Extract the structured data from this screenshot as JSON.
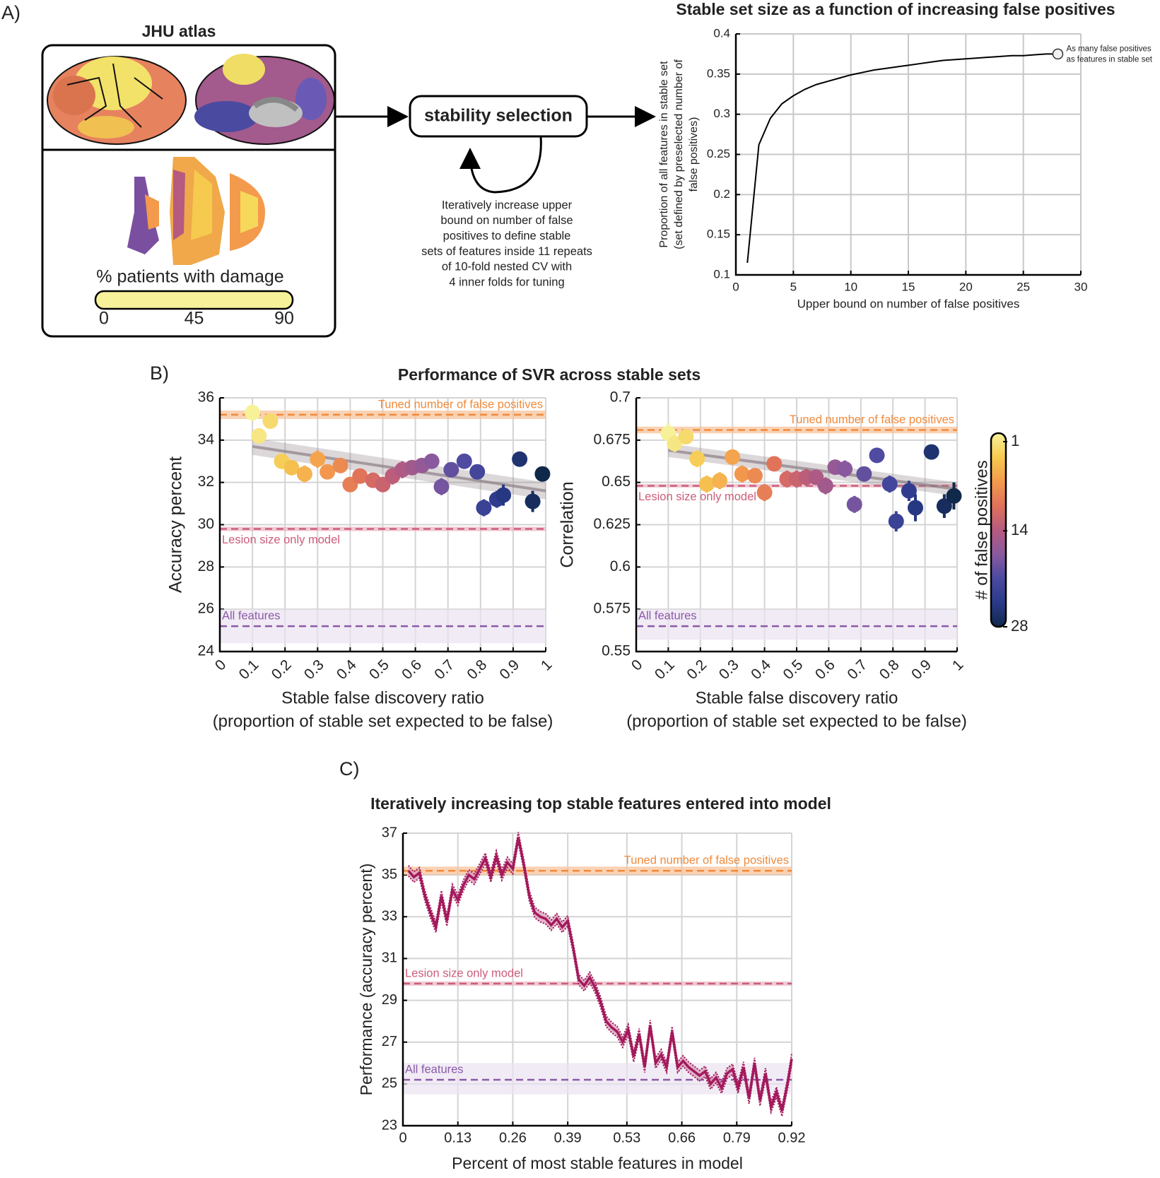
{
  "panel_labels": [
    "A)",
    "B)",
    "C)"
  ],
  "panel_a": {
    "atlas_title": "JHU atlas",
    "colorbar_label": "% patients with damage",
    "colorbar_lim": [
      0,
      90
    ],
    "colorbar_ticks": [
      0,
      45,
      90
    ],
    "box_label": "stability selection",
    "caption": [
      "Iteratively increase upper",
      "bound on number of false",
      "positives to define stable",
      "sets of features inside 11 repeats",
      "of 10-fold nested CV with",
      "4 inner folds for tuning"
    ]
  },
  "panel_b": {
    "title": "Performance of SVR across stable sets",
    "colorbar": {
      "label": "# of false positives",
      "lim": [
        1,
        28
      ],
      "ticks": [
        1,
        14,
        28
      ],
      "colors": [
        "#f7f29a",
        "#f6c94f",
        "#f39a4c",
        "#e0715a",
        "#b65a80",
        "#8a5a9e",
        "#4a4aa0",
        "#2a3a8a",
        "#10284a"
      ]
    }
  },
  "chart_data": [
    {
      "type": "line",
      "title": "Stable set size as a function of increasing false positives",
      "xlabel": "Upper bound on number of false positives",
      "ylabel": [
        "Proportion of all features in stable set",
        "(set defined by preselected number of",
        "false positives)"
      ],
      "x": [
        1,
        2,
        3,
        4,
        5,
        6,
        7,
        8,
        9,
        10,
        11,
        12,
        13,
        14,
        15,
        16,
        17,
        18,
        19,
        20,
        21,
        22,
        23,
        24,
        25,
        26,
        27,
        28
      ],
      "values": [
        0.115,
        0.262,
        0.295,
        0.313,
        0.323,
        0.331,
        0.337,
        0.341,
        0.345,
        0.349,
        0.352,
        0.355,
        0.357,
        0.359,
        0.361,
        0.363,
        0.365,
        0.367,
        0.368,
        0.369,
        0.37,
        0.371,
        0.372,
        0.373,
        0.373,
        0.374,
        0.375,
        0.375
      ],
      "color": "#000000",
      "xlim": [
        0,
        30
      ],
      "xticks": [
        0,
        5,
        10,
        15,
        20,
        25,
        30
      ],
      "ylim": [
        0.1,
        0.4
      ],
      "yticks": [
        0.1,
        0.15,
        0.2,
        0.25,
        0.3,
        0.35,
        0.4
      ],
      "grid": true,
      "annotation": {
        "lines": [
          "As many false positives",
          "as features in stable set"
        ],
        "x": 28,
        "y": 0.375
      }
    },
    {
      "type": "scatter",
      "ylabel": [
        "Accuracy percent"
      ],
      "xlabel": [
        "Stable false discovery ratio",
        "(proportion of stable set expected to be false)"
      ],
      "x": [
        0.1,
        0.12,
        0.155,
        0.19,
        0.22,
        0.26,
        0.3,
        0.33,
        0.37,
        0.4,
        0.43,
        0.47,
        0.5,
        0.53,
        0.56,
        0.59,
        0.62,
        0.65,
        0.68,
        0.71,
        0.75,
        0.79,
        0.81,
        0.85,
        0.87,
        0.92,
        0.96,
        0.99
      ],
      "values": [
        35.3,
        34.2,
        34.9,
        33.0,
        32.7,
        32.4,
        33.1,
        32.5,
        32.8,
        31.9,
        32.3,
        32.1,
        31.9,
        32.3,
        32.6,
        32.7,
        32.8,
        33.0,
        31.8,
        32.6,
        33.0,
        32.5,
        30.8,
        31.2,
        31.4,
        33.1,
        31.1,
        32.4
      ],
      "errors": [
        0.4,
        0.3,
        0.3,
        0.3,
        0.3,
        0.4,
        0.4,
        0.3,
        0.3,
        0.3,
        0.3,
        0.3,
        0.3,
        0.4,
        0.4,
        0.3,
        0.3,
        0.3,
        0.4,
        0.3,
        0.3,
        0.3,
        0.4,
        0.4,
        0.5,
        0.3,
        0.5,
        0.3
      ],
      "color_values": [
        1,
        2,
        3,
        4,
        5,
        6,
        7,
        8,
        9,
        10,
        11,
        12,
        13,
        14,
        15,
        16,
        17,
        18,
        19,
        20,
        21,
        22,
        23,
        24,
        25,
        26,
        27,
        28
      ],
      "xlim": [
        0,
        1
      ],
      "xticks": [
        0,
        0.1,
        0.2,
        0.3,
        0.4,
        0.5,
        0.6,
        0.7,
        0.8,
        0.9,
        1
      ],
      "ylim": [
        24,
        36
      ],
      "yticks": [
        24,
        26,
        28,
        30,
        32,
        34,
        36
      ],
      "grid": true,
      "trend": {
        "x": [
          0.1,
          1
        ],
        "values": [
          33.7,
          31.6
        ],
        "band": 0.4,
        "color": "#8c7f86"
      },
      "reference_lines": [
        {
          "name": "Tuned number of false positives",
          "value": 35.2,
          "band": [
            35.0,
            35.4
          ],
          "color": "#f08a3c",
          "band_color": "#f6bf94"
        },
        {
          "name": "Lesion size only model",
          "value": 29.8,
          "band": [
            29.7,
            29.9
          ],
          "color": "#cc5d7a",
          "band_color": "#e8b0bf"
        },
        {
          "name": "All features",
          "value": 25.2,
          "band": [
            24.4,
            26.0
          ],
          "color": "#8b5aa8",
          "band_color": "#ebe3f1"
        }
      ]
    },
    {
      "type": "scatter",
      "ylabel": [
        "Correlation"
      ],
      "xlabel": [
        "Stable false discovery ratio",
        "(proportion of stable set expected to be false)"
      ],
      "x": [
        0.1,
        0.12,
        0.155,
        0.19,
        0.22,
        0.26,
        0.3,
        0.33,
        0.37,
        0.4,
        0.43,
        0.47,
        0.5,
        0.53,
        0.56,
        0.59,
        0.62,
        0.65,
        0.68,
        0.71,
        0.75,
        0.79,
        0.81,
        0.85,
        0.87,
        0.92,
        0.96,
        0.99
      ],
      "values": [
        0.679,
        0.673,
        0.677,
        0.664,
        0.649,
        0.651,
        0.665,
        0.655,
        0.654,
        0.644,
        0.661,
        0.652,
        0.652,
        0.653,
        0.653,
        0.648,
        0.659,
        0.658,
        0.637,
        0.655,
        0.666,
        0.649,
        0.627,
        0.645,
        0.635,
        0.668,
        0.636,
        0.642
      ],
      "errors": [
        0.006,
        0.005,
        0.004,
        0.005,
        0.005,
        0.005,
        0.004,
        0.005,
        0.004,
        0.005,
        0.004,
        0.005,
        0.005,
        0.005,
        0.004,
        0.005,
        0.004,
        0.005,
        0.005,
        0.004,
        0.004,
        0.005,
        0.006,
        0.006,
        0.008,
        0.004,
        0.007,
        0.008
      ],
      "color_values": [
        1,
        2,
        3,
        4,
        5,
        6,
        7,
        8,
        9,
        10,
        11,
        12,
        13,
        14,
        15,
        16,
        17,
        18,
        19,
        20,
        21,
        22,
        23,
        24,
        25,
        26,
        27,
        28
      ],
      "xlim": [
        0,
        1
      ],
      "xticks": [
        0,
        0.1,
        0.2,
        0.3,
        0.4,
        0.5,
        0.6,
        0.7,
        0.8,
        0.9,
        1
      ],
      "ylim": [
        0.55,
        0.7
      ],
      "yticks": [
        0.55,
        0.575,
        0.6,
        0.625,
        0.65,
        0.675,
        0.7
      ],
      "grid": true,
      "trend": {
        "x": [
          0.1,
          1
        ],
        "values": [
          0.669,
          0.646
        ],
        "band": 0.004,
        "color": "#8c7f86"
      },
      "reference_lines": [
        {
          "name": "Tuned number of false positives",
          "value": 0.681,
          "band": [
            0.679,
            0.683
          ],
          "color": "#f08a3c",
          "band_color": "#f6bf94"
        },
        {
          "name": "Lesion size only model",
          "value": 0.648,
          "band": [
            0.647,
            0.649
          ],
          "color": "#cc5d7a",
          "band_color": "#e8b0bf"
        },
        {
          "name": "All features",
          "value": 0.565,
          "band": [
            0.557,
            0.575
          ],
          "color": "#8b5aa8",
          "band_color": "#ebe3f1"
        }
      ]
    },
    {
      "type": "line",
      "title": "Iteratively increasing top stable features entered into model",
      "xlabel": "Percent of most stable features in model",
      "ylabel": [
        "Performance (accuracy percent)"
      ],
      "x": [
        0.013,
        0.026,
        0.039,
        0.052,
        0.065,
        0.078,
        0.091,
        0.104,
        0.117,
        0.13,
        0.143,
        0.156,
        0.169,
        0.182,
        0.195,
        0.208,
        0.221,
        0.234,
        0.247,
        0.26,
        0.273,
        0.286,
        0.299,
        0.312,
        0.325,
        0.338,
        0.351,
        0.364,
        0.377,
        0.39,
        0.403,
        0.416,
        0.429,
        0.442,
        0.455,
        0.468,
        0.481,
        0.494,
        0.507,
        0.52,
        0.533,
        0.546,
        0.559,
        0.572,
        0.585,
        0.598,
        0.611,
        0.624,
        0.637,
        0.65,
        0.663,
        0.676,
        0.689,
        0.702,
        0.715,
        0.728,
        0.741,
        0.754,
        0.767,
        0.78,
        0.793,
        0.806,
        0.819,
        0.832,
        0.845,
        0.858,
        0.871,
        0.884,
        0.897,
        0.91,
        0.92
      ],
      "values": [
        35.2,
        34.9,
        35.1,
        34.0,
        33.2,
        32.5,
        34.0,
        32.8,
        34.3,
        33.8,
        34.5,
        35.0,
        34.8,
        35.3,
        35.8,
        34.9,
        35.9,
        35.0,
        35.6,
        35.3,
        36.8,
        35.5,
        34.0,
        33.2,
        33.0,
        32.9,
        32.6,
        32.9,
        32.5,
        32.8,
        31.5,
        30.0,
        29.7,
        30.1,
        29.6,
        28.9,
        28.0,
        27.7,
        27.5,
        27.0,
        27.6,
        26.3,
        27.4,
        25.8,
        27.8,
        26.0,
        26.4,
        25.8,
        27.5,
        25.8,
        26.1,
        25.8,
        25.6,
        25.4,
        25.6,
        25.0,
        25.3,
        24.8,
        25.5,
        25.7,
        24.8,
        25.8,
        24.3,
        26.0,
        24.2,
        25.5,
        23.9,
        24.6,
        23.7,
        25.0,
        26.2
      ],
      "band": 0.25,
      "color": "#a3195b",
      "band_color": "#d9a3bd",
      "xlim": [
        0,
        0.92
      ],
      "xticks": [
        0,
        0.13,
        0.26,
        0.39,
        0.53,
        0.66,
        0.79,
        0.92
      ],
      "ylim": [
        23,
        37
      ],
      "yticks": [
        23,
        25,
        27,
        29,
        31,
        33,
        35,
        37
      ],
      "grid": true,
      "reference_lines": [
        {
          "name": "Tuned number of false positives",
          "value": 35.2,
          "band": [
            35.0,
            35.4
          ],
          "color": "#f08a3c",
          "band_color": "#f6bf94"
        },
        {
          "name": "Lesion size only model",
          "value": 29.8,
          "band": [
            29.7,
            29.9
          ],
          "color": "#cc5d7a",
          "band_color": "#e8b0bf"
        },
        {
          "name": "All features",
          "value": 25.2,
          "band": [
            24.5,
            26.0
          ],
          "color": "#8b5aa8",
          "band_color": "#ebe3f1"
        }
      ]
    }
  ]
}
